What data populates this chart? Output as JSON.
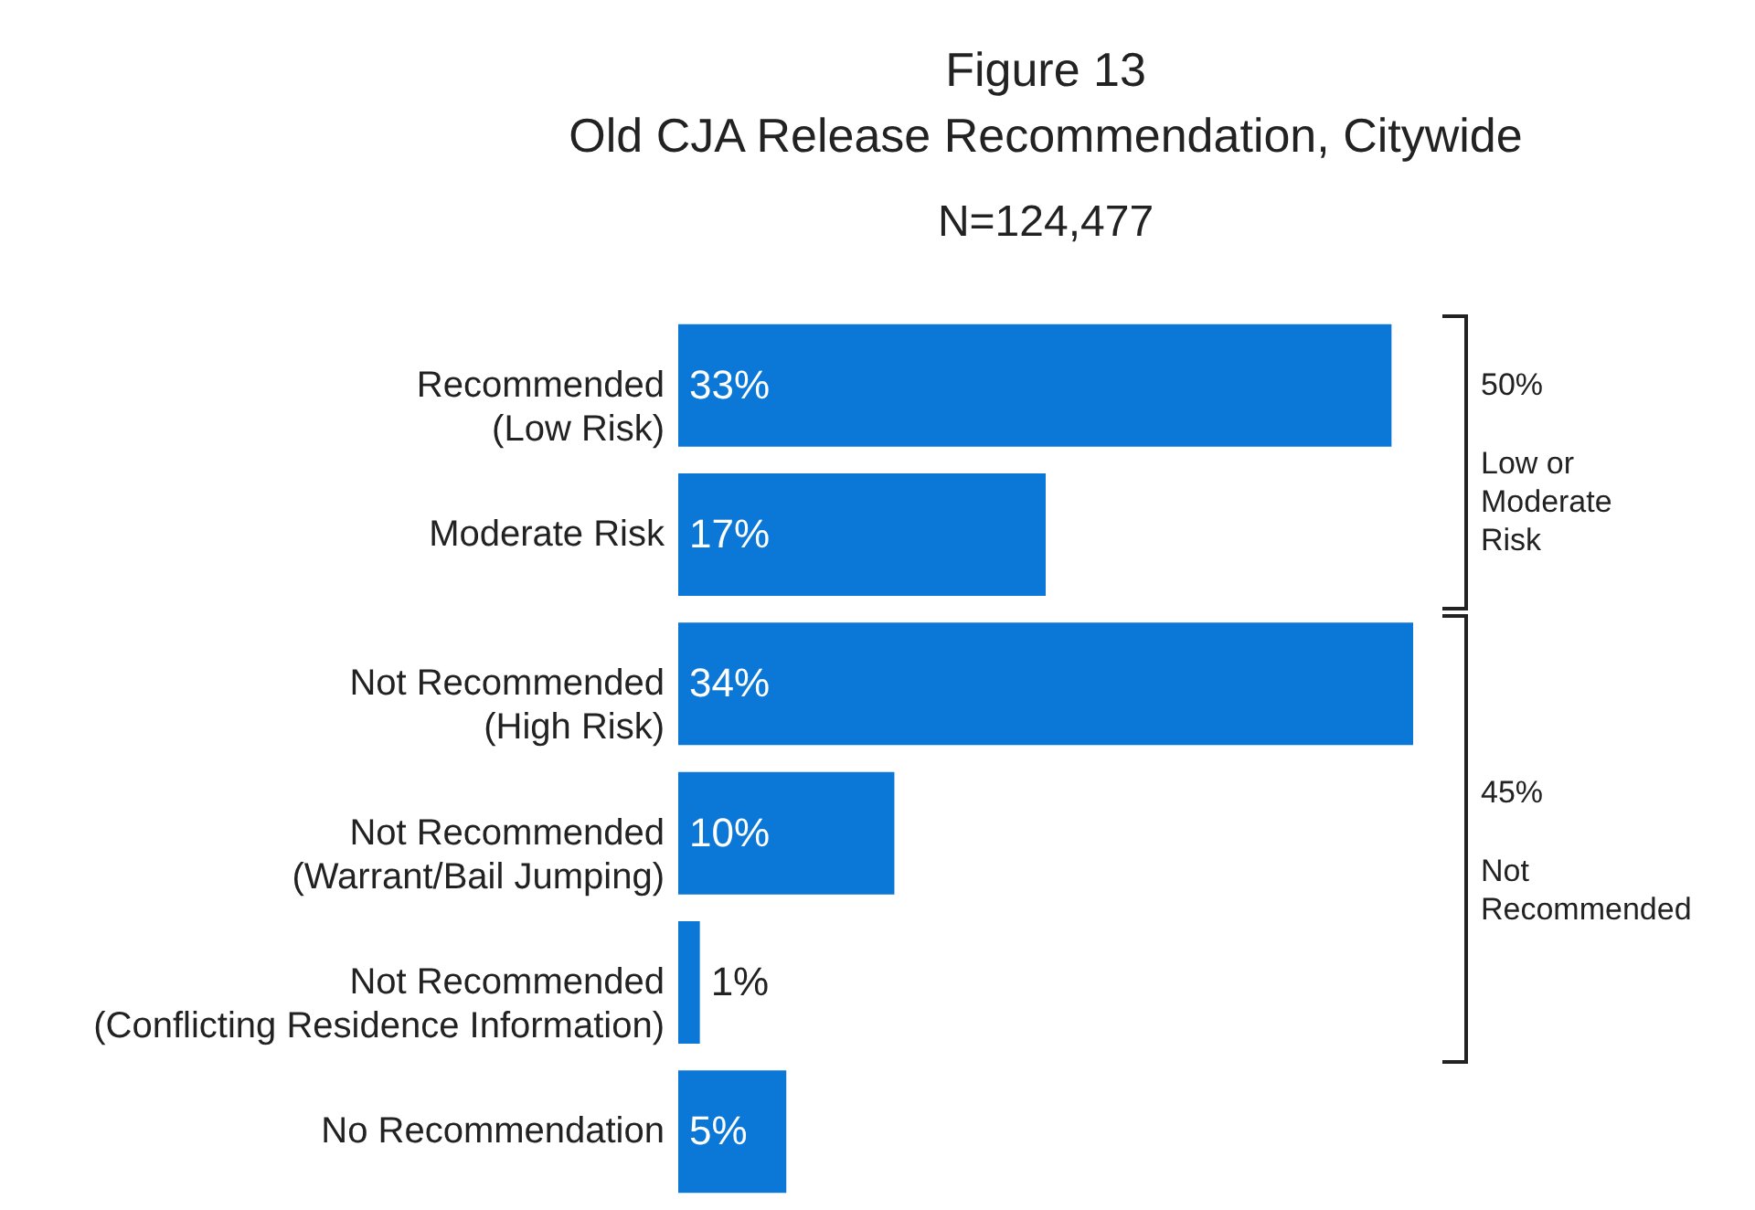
{
  "chart_data": {
    "type": "bar",
    "orientation": "horizontal",
    "title": "Figure 13\nOld CJA Release Recommendation, Citywide",
    "subtitle": "N=124,477",
    "categories": [
      "Recommended\n(Low Risk)",
      "Moderate Risk",
      "Not Recommended\n(High Risk)",
      "Not Recommended\n(Warrant/Bail Jumping)",
      "Not Recommended\n(Conflicting Residence Information)",
      "No Recommendation"
    ],
    "values": [
      33,
      17,
      34,
      10,
      1,
      5
    ],
    "value_labels": [
      "33%",
      "17%",
      "34%",
      "10%",
      "1%",
      "5%"
    ],
    "color": "#0b77d6",
    "annotations": [
      "50%",
      "Low or\nModerate\nRisk",
      "45%",
      "Not\nRecommended"
    ]
  }
}
